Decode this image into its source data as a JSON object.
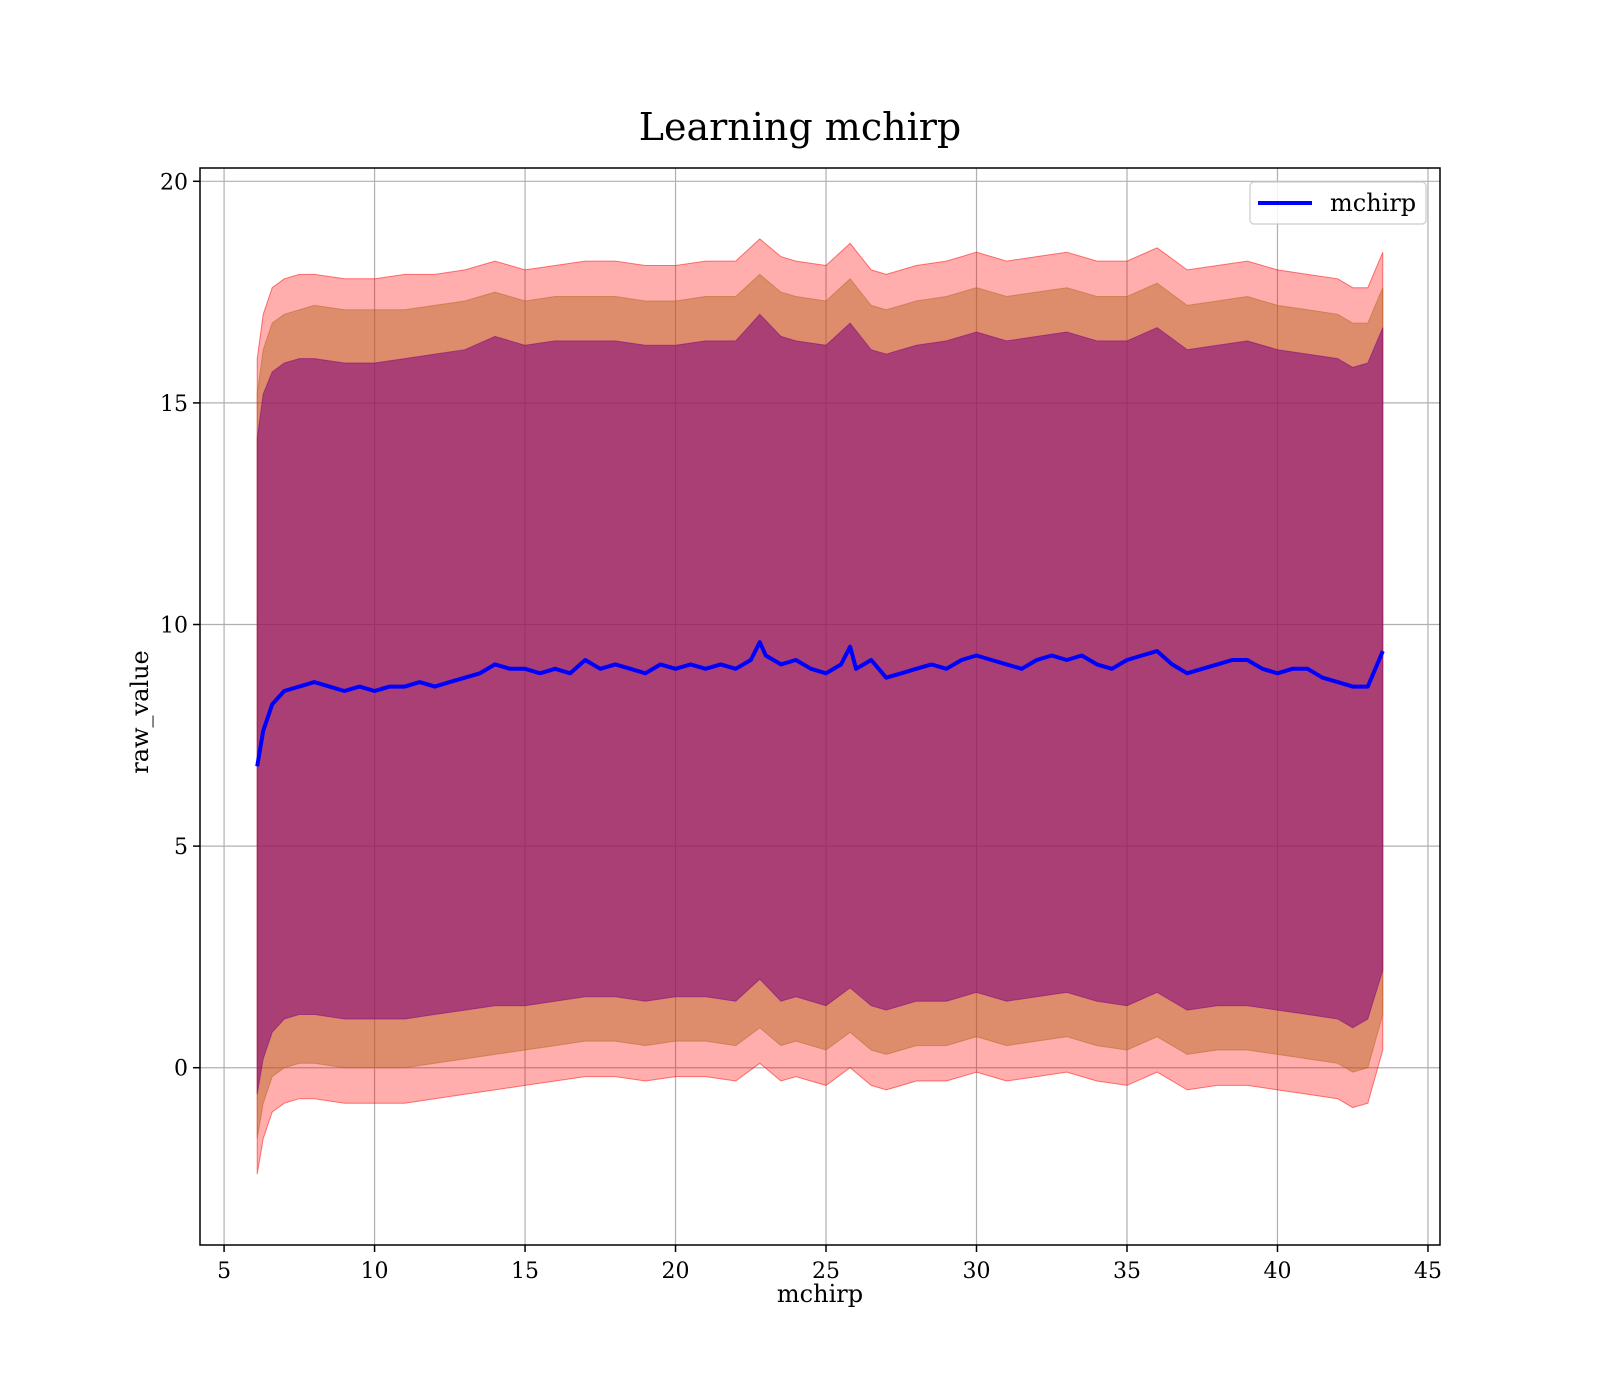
{
  "chart_data": {
    "type": "line",
    "title": "Learning mchirp",
    "xlabel": "mchirp",
    "ylabel": "raw_value",
    "xlim": [
      4.2,
      45.4
    ],
    "ylim": [
      -4.0,
      20.3
    ],
    "xticks": [
      5,
      10,
      15,
      20,
      25,
      30,
      35,
      40,
      45
    ],
    "yticks": [
      0,
      5,
      10,
      15,
      20
    ],
    "grid": true,
    "legend_position": "top-right",
    "legend": [
      "mchirp"
    ],
    "colors": {
      "mean_line": "#0000ff",
      "band_outer": "#ff0000",
      "band_middle": "#b5651d",
      "band_inner": "#800080"
    },
    "series": [
      {
        "name": "mchirp",
        "kind": "line",
        "x": [
          6.1,
          6.3,
          6.6,
          7.0,
          7.5,
          8.0,
          8.5,
          9.0,
          9.5,
          10.0,
          10.5,
          11.0,
          11.5,
          12.0,
          12.5,
          13.0,
          13.5,
          14.0,
          14.5,
          15.0,
          15.5,
          16.0,
          16.5,
          17.0,
          17.5,
          18.0,
          18.5,
          19.0,
          19.5,
          20.0,
          20.5,
          21.0,
          21.5,
          22.0,
          22.5,
          22.8,
          23.0,
          23.5,
          24.0,
          24.5,
          25.0,
          25.5,
          25.8,
          26.0,
          26.5,
          27.0,
          27.5,
          28.0,
          28.5,
          29.0,
          29.5,
          30.0,
          30.5,
          31.0,
          31.5,
          32.0,
          32.5,
          33.0,
          33.5,
          34.0,
          34.5,
          35.0,
          35.5,
          36.0,
          36.5,
          37.0,
          37.5,
          38.0,
          38.5,
          39.0,
          39.5,
          40.0,
          40.5,
          41.0,
          41.5,
          42.0,
          42.5,
          43.0,
          43.5
        ],
        "y": [
          6.8,
          7.6,
          8.2,
          8.5,
          8.6,
          8.7,
          8.6,
          8.5,
          8.6,
          8.5,
          8.6,
          8.6,
          8.7,
          8.6,
          8.7,
          8.8,
          8.9,
          9.1,
          9.0,
          9.0,
          8.9,
          9.0,
          8.9,
          9.2,
          9.0,
          9.1,
          9.0,
          8.9,
          9.1,
          9.0,
          9.1,
          9.0,
          9.1,
          9.0,
          9.2,
          9.6,
          9.3,
          9.1,
          9.2,
          9.0,
          8.9,
          9.1,
          9.5,
          9.0,
          9.2,
          8.8,
          8.9,
          9.0,
          9.1,
          9.0,
          9.2,
          9.3,
          9.2,
          9.1,
          9.0,
          9.2,
          9.3,
          9.2,
          9.3,
          9.1,
          9.0,
          9.2,
          9.3,
          9.4,
          9.1,
          8.9,
          9.0,
          9.1,
          9.2,
          9.2,
          9.0,
          8.9,
          9.0,
          9.0,
          8.8,
          8.7,
          8.6,
          8.6,
          9.4
        ]
      },
      {
        "kind": "band",
        "color": "#ff0000",
        "x": [
          6.1,
          6.3,
          6.6,
          7.0,
          7.5,
          8.0,
          9.0,
          10.0,
          11.0,
          12.0,
          13.0,
          14.0,
          15.0,
          16.0,
          17.0,
          18.0,
          19.0,
          20.0,
          21.0,
          22.0,
          22.8,
          23.5,
          24.0,
          25.0,
          25.8,
          26.5,
          27.0,
          28.0,
          29.0,
          30.0,
          31.0,
          32.0,
          33.0,
          34.0,
          35.0,
          36.0,
          37.0,
          38.0,
          39.0,
          40.0,
          41.0,
          42.0,
          42.5,
          43.0,
          43.5
        ],
        "upper": [
          16.0,
          17.0,
          17.6,
          17.8,
          17.9,
          17.9,
          17.8,
          17.8,
          17.9,
          17.9,
          18.0,
          18.2,
          18.0,
          18.1,
          18.2,
          18.2,
          18.1,
          18.1,
          18.2,
          18.2,
          18.7,
          18.3,
          18.2,
          18.1,
          18.6,
          18.0,
          17.9,
          18.1,
          18.2,
          18.4,
          18.2,
          18.3,
          18.4,
          18.2,
          18.2,
          18.5,
          18.0,
          18.1,
          18.2,
          18.0,
          17.9,
          17.8,
          17.6,
          17.6,
          18.4
        ],
        "lower": [
          -2.4,
          -1.6,
          -1.0,
          -0.8,
          -0.7,
          -0.7,
          -0.8,
          -0.8,
          -0.8,
          -0.7,
          -0.6,
          -0.5,
          -0.4,
          -0.3,
          -0.2,
          -0.2,
          -0.3,
          -0.2,
          -0.2,
          -0.3,
          0.1,
          -0.3,
          -0.2,
          -0.4,
          0.0,
          -0.4,
          -0.5,
          -0.3,
          -0.3,
          -0.1,
          -0.3,
          -0.2,
          -0.1,
          -0.3,
          -0.4,
          -0.1,
          -0.5,
          -0.4,
          -0.4,
          -0.5,
          -0.6,
          -0.7,
          -0.9,
          -0.8,
          0.4
        ]
      },
      {
        "kind": "band",
        "color": "#b5651d",
        "x": [
          6.1,
          6.3,
          6.6,
          7.0,
          7.5,
          8.0,
          9.0,
          10.0,
          11.0,
          12.0,
          13.0,
          14.0,
          15.0,
          16.0,
          17.0,
          18.0,
          19.0,
          20.0,
          21.0,
          22.0,
          22.8,
          23.5,
          24.0,
          25.0,
          25.8,
          26.5,
          27.0,
          28.0,
          29.0,
          30.0,
          31.0,
          32.0,
          33.0,
          34.0,
          35.0,
          36.0,
          37.0,
          38.0,
          39.0,
          40.0,
          41.0,
          42.0,
          42.5,
          43.0,
          43.5
        ],
        "upper": [
          15.2,
          16.2,
          16.8,
          17.0,
          17.1,
          17.2,
          17.1,
          17.1,
          17.1,
          17.2,
          17.3,
          17.5,
          17.3,
          17.4,
          17.4,
          17.4,
          17.3,
          17.3,
          17.4,
          17.4,
          17.9,
          17.5,
          17.4,
          17.3,
          17.8,
          17.2,
          17.1,
          17.3,
          17.4,
          17.6,
          17.4,
          17.5,
          17.6,
          17.4,
          17.4,
          17.7,
          17.2,
          17.3,
          17.4,
          17.2,
          17.1,
          17.0,
          16.8,
          16.8,
          17.6
        ],
        "lower": [
          -1.6,
          -0.8,
          -0.2,
          0.0,
          0.1,
          0.1,
          0.0,
          0.0,
          0.0,
          0.1,
          0.2,
          0.3,
          0.4,
          0.5,
          0.6,
          0.6,
          0.5,
          0.6,
          0.6,
          0.5,
          0.9,
          0.5,
          0.6,
          0.4,
          0.8,
          0.4,
          0.3,
          0.5,
          0.5,
          0.7,
          0.5,
          0.6,
          0.7,
          0.5,
          0.4,
          0.7,
          0.3,
          0.4,
          0.4,
          0.3,
          0.2,
          0.1,
          -0.1,
          0.0,
          1.2
        ]
      },
      {
        "kind": "band",
        "color": "#800080",
        "x": [
          6.1,
          6.3,
          6.6,
          7.0,
          7.5,
          8.0,
          9.0,
          10.0,
          11.0,
          12.0,
          13.0,
          14.0,
          15.0,
          16.0,
          17.0,
          18.0,
          19.0,
          20.0,
          21.0,
          22.0,
          22.8,
          23.5,
          24.0,
          25.0,
          25.8,
          26.5,
          27.0,
          28.0,
          29.0,
          30.0,
          31.0,
          32.0,
          33.0,
          34.0,
          35.0,
          36.0,
          37.0,
          38.0,
          39.0,
          40.0,
          41.0,
          42.0,
          42.5,
          43.0,
          43.5
        ],
        "upper": [
          14.2,
          15.2,
          15.7,
          15.9,
          16.0,
          16.0,
          15.9,
          15.9,
          16.0,
          16.1,
          16.2,
          16.5,
          16.3,
          16.4,
          16.4,
          16.4,
          16.3,
          16.3,
          16.4,
          16.4,
          17.0,
          16.5,
          16.4,
          16.3,
          16.8,
          16.2,
          16.1,
          16.3,
          16.4,
          16.6,
          16.4,
          16.5,
          16.6,
          16.4,
          16.4,
          16.7,
          16.2,
          16.3,
          16.4,
          16.2,
          16.1,
          16.0,
          15.8,
          15.9,
          16.7
        ],
        "lower": [
          -0.6,
          0.2,
          0.8,
          1.1,
          1.2,
          1.2,
          1.1,
          1.1,
          1.1,
          1.2,
          1.3,
          1.4,
          1.4,
          1.5,
          1.6,
          1.6,
          1.5,
          1.6,
          1.6,
          1.5,
          2.0,
          1.5,
          1.6,
          1.4,
          1.8,
          1.4,
          1.3,
          1.5,
          1.5,
          1.7,
          1.5,
          1.6,
          1.7,
          1.5,
          1.4,
          1.7,
          1.3,
          1.4,
          1.4,
          1.3,
          1.2,
          1.1,
          0.9,
          1.1,
          2.2
        ]
      }
    ]
  }
}
